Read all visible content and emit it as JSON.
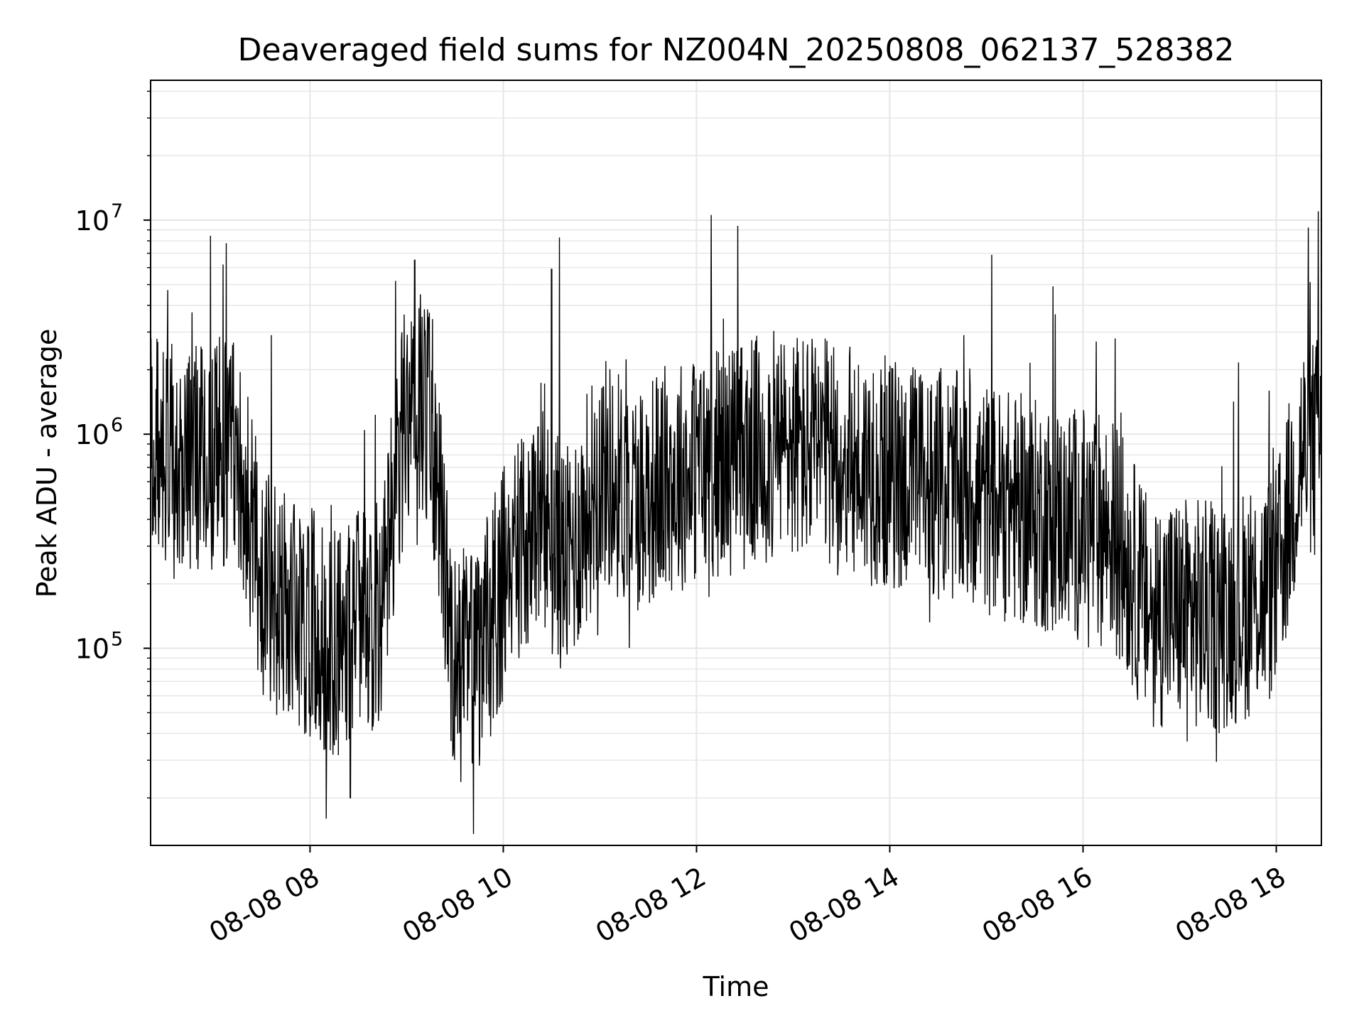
{
  "chart_data": {
    "type": "line",
    "title": "Deaveraged field sums for NZ004N_20250808_062137_528382",
    "xlabel": "Time",
    "ylabel": "Peak ADU - average",
    "y_scale": "log",
    "ylim": [
      12000,
      45000000
    ],
    "xlim": [
      "08-08 06:21",
      "08-08 18:28"
    ],
    "x_ticks": [
      {
        "label": "08-08 08",
        "t": "08-08 08:00"
      },
      {
        "label": "08-08 10",
        "t": "08-08 10:00"
      },
      {
        "label": "08-08 12",
        "t": "08-08 12:00"
      },
      {
        "label": "08-08 14",
        "t": "08-08 14:00"
      },
      {
        "label": "08-08 16",
        "t": "08-08 16:00"
      },
      {
        "label": "08-08 18",
        "t": "08-08 18:00"
      }
    ],
    "y_ticks": [
      {
        "base": "10",
        "exp": "5",
        "value": 100000
      },
      {
        "base": "10",
        "exp": "6",
        "value": 1000000
      },
      {
        "base": "10",
        "exp": "7",
        "value": 10000000
      }
    ],
    "grid": true,
    "line_color": "#000000",
    "grid_color": "#e6e6e6",
    "series": [
      {
        "x": [
          "08-08 06:21",
          "08-08 06:40",
          "08-08 07:00",
          "08-08 07:15",
          "08-08 07:30",
          "08-08 07:45",
          "08-08 08:00",
          "08-08 08:15",
          "08-08 08:30",
          "08-08 08:45",
          "08-08 09:00",
          "08-08 09:15",
          "08-08 09:30",
          "08-08 09:45",
          "08-08 10:00",
          "08-08 10:20",
          "08-08 10:40",
          "08-08 11:00",
          "08-08 11:20",
          "08-08 11:40",
          "08-08 12:00",
          "08-08 12:30",
          "08-08 13:00",
          "08-08 13:30",
          "08-08 14:00",
          "08-08 14:30",
          "08-08 15:00",
          "08-08 15:30",
          "08-08 16:00",
          "08-08 16:20",
          "08-08 16:40",
          "08-08 17:00",
          "08-08 17:20",
          "08-08 17:40",
          "08-08 18:00",
          "08-08 18:15",
          "08-08 18:28"
        ],
        "y": [
          900000,
          700000,
          800000,
          900000,
          200000,
          150000,
          130000,
          100000,
          130000,
          150000,
          1500000,
          1200000,
          80000,
          90000,
          200000,
          400000,
          250000,
          700000,
          500000,
          600000,
          700000,
          800000,
          900000,
          750000,
          650000,
          600000,
          500000,
          420000,
          380000,
          350000,
          150000,
          150000,
          140000,
          160000,
          200000,
          800000,
          850000
        ],
        "spikes": [
          {
            "t": "08-08 07:08",
            "y": 7800000
          },
          {
            "t": "08-08 07:06",
            "y": 6200000
          },
          {
            "t": "08-08 08:53",
            "y": 5200000
          },
          {
            "t": "08-08 09:05",
            "y": 6500000
          },
          {
            "t": "08-08 10:30",
            "y": 5900000
          },
          {
            "t": "08-08 10:35",
            "y": 8300000
          },
          {
            "t": "08-08 18:26",
            "y": 11000000
          },
          {
            "t": "08-08 07:36",
            "y": 2900000
          },
          {
            "t": "08-08 14:46",
            "y": 2900000
          },
          {
            "t": "08-08 16:20",
            "y": 2800000
          },
          {
            "t": "08-08 08:10",
            "y": 16000
          },
          {
            "t": "08-08 08:25",
            "y": 20000
          }
        ]
      }
    ]
  }
}
